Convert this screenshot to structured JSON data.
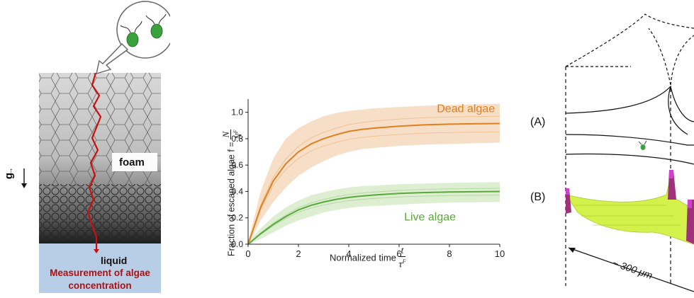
{
  "left_panel": {
    "gravity_label": "g",
    "foam_label": "foam",
    "liquid_label": "liquid",
    "measurement_label_line1": "Measurement of algae",
    "measurement_label_line2": "concentration",
    "colors": {
      "liquid": "#b8cde6",
      "path": "#c81010",
      "measurement": "#b01010"
    }
  },
  "chart_data": {
    "type": "line",
    "xlabel": "Normalized time",
    "xlabel_fraction": {
      "numerator": "t",
      "denominator": "τ",
      "denominator_sup": "F"
    },
    "ylabel": "Fraction of escaped algae f =",
    "ylabel_fraction": {
      "numerator": "N",
      "denominator": "N",
      "denominator_sup": "F"
    },
    "xlim": [
      0,
      10
    ],
    "ylim": [
      0,
      1.1
    ],
    "xticks": [
      "0",
      "2",
      "4",
      "6",
      "8",
      "10"
    ],
    "yticks": [
      "0.0",
      "0.2",
      "0.4",
      "0.6",
      "0.8",
      "1.0"
    ],
    "grid": false,
    "series": [
      {
        "name": "Dead algae",
        "color": "#e07f1e",
        "band_color": "#f6d9bd",
        "x": [
          0,
          0.5,
          1,
          1.5,
          2,
          2.5,
          3,
          3.5,
          4,
          4.5,
          5,
          6,
          7,
          8,
          9,
          10
        ],
        "values": [
          0,
          0.28,
          0.48,
          0.61,
          0.7,
          0.76,
          0.8,
          0.83,
          0.855,
          0.87,
          0.88,
          0.895,
          0.905,
          0.91,
          0.913,
          0.915
        ],
        "upper": [
          0.02,
          0.4,
          0.65,
          0.8,
          0.88,
          0.93,
          0.97,
          0.995,
          1.01,
          1.02,
          1.03,
          1.04,
          1.05,
          1.055,
          1.06,
          1.065
        ],
        "lower": [
          0,
          0.18,
          0.32,
          0.43,
          0.52,
          0.58,
          0.63,
          0.67,
          0.7,
          0.72,
          0.73,
          0.745,
          0.755,
          0.76,
          0.765,
          0.77
        ]
      },
      {
        "name": "Live algae",
        "color": "#5aa83a",
        "band_color": "#d7ebc9",
        "x": [
          0,
          0.5,
          1,
          1.5,
          2,
          2.5,
          3,
          3.5,
          4,
          4.5,
          5,
          6,
          7,
          8,
          9,
          10
        ],
        "values": [
          0,
          0.08,
          0.15,
          0.21,
          0.26,
          0.295,
          0.32,
          0.34,
          0.355,
          0.365,
          0.373,
          0.385,
          0.392,
          0.396,
          0.398,
          0.4
        ],
        "upper": [
          0.02,
          0.12,
          0.21,
          0.28,
          0.33,
          0.37,
          0.395,
          0.415,
          0.43,
          0.44,
          0.445,
          0.455,
          0.46,
          0.465,
          0.468,
          0.47
        ],
        "lower": [
          0,
          0.04,
          0.09,
          0.14,
          0.18,
          0.21,
          0.24,
          0.26,
          0.275,
          0.285,
          0.29,
          0.3,
          0.31,
          0.315,
          0.318,
          0.32
        ]
      }
    ]
  },
  "right_panel": {
    "label_a": "(A)",
    "label_b": "(B)",
    "scale_label": "~ 300 μm",
    "colors": {
      "surface": "#d4f04a",
      "peak": "#a0307a",
      "peak_tip": "#d040d0"
    }
  }
}
